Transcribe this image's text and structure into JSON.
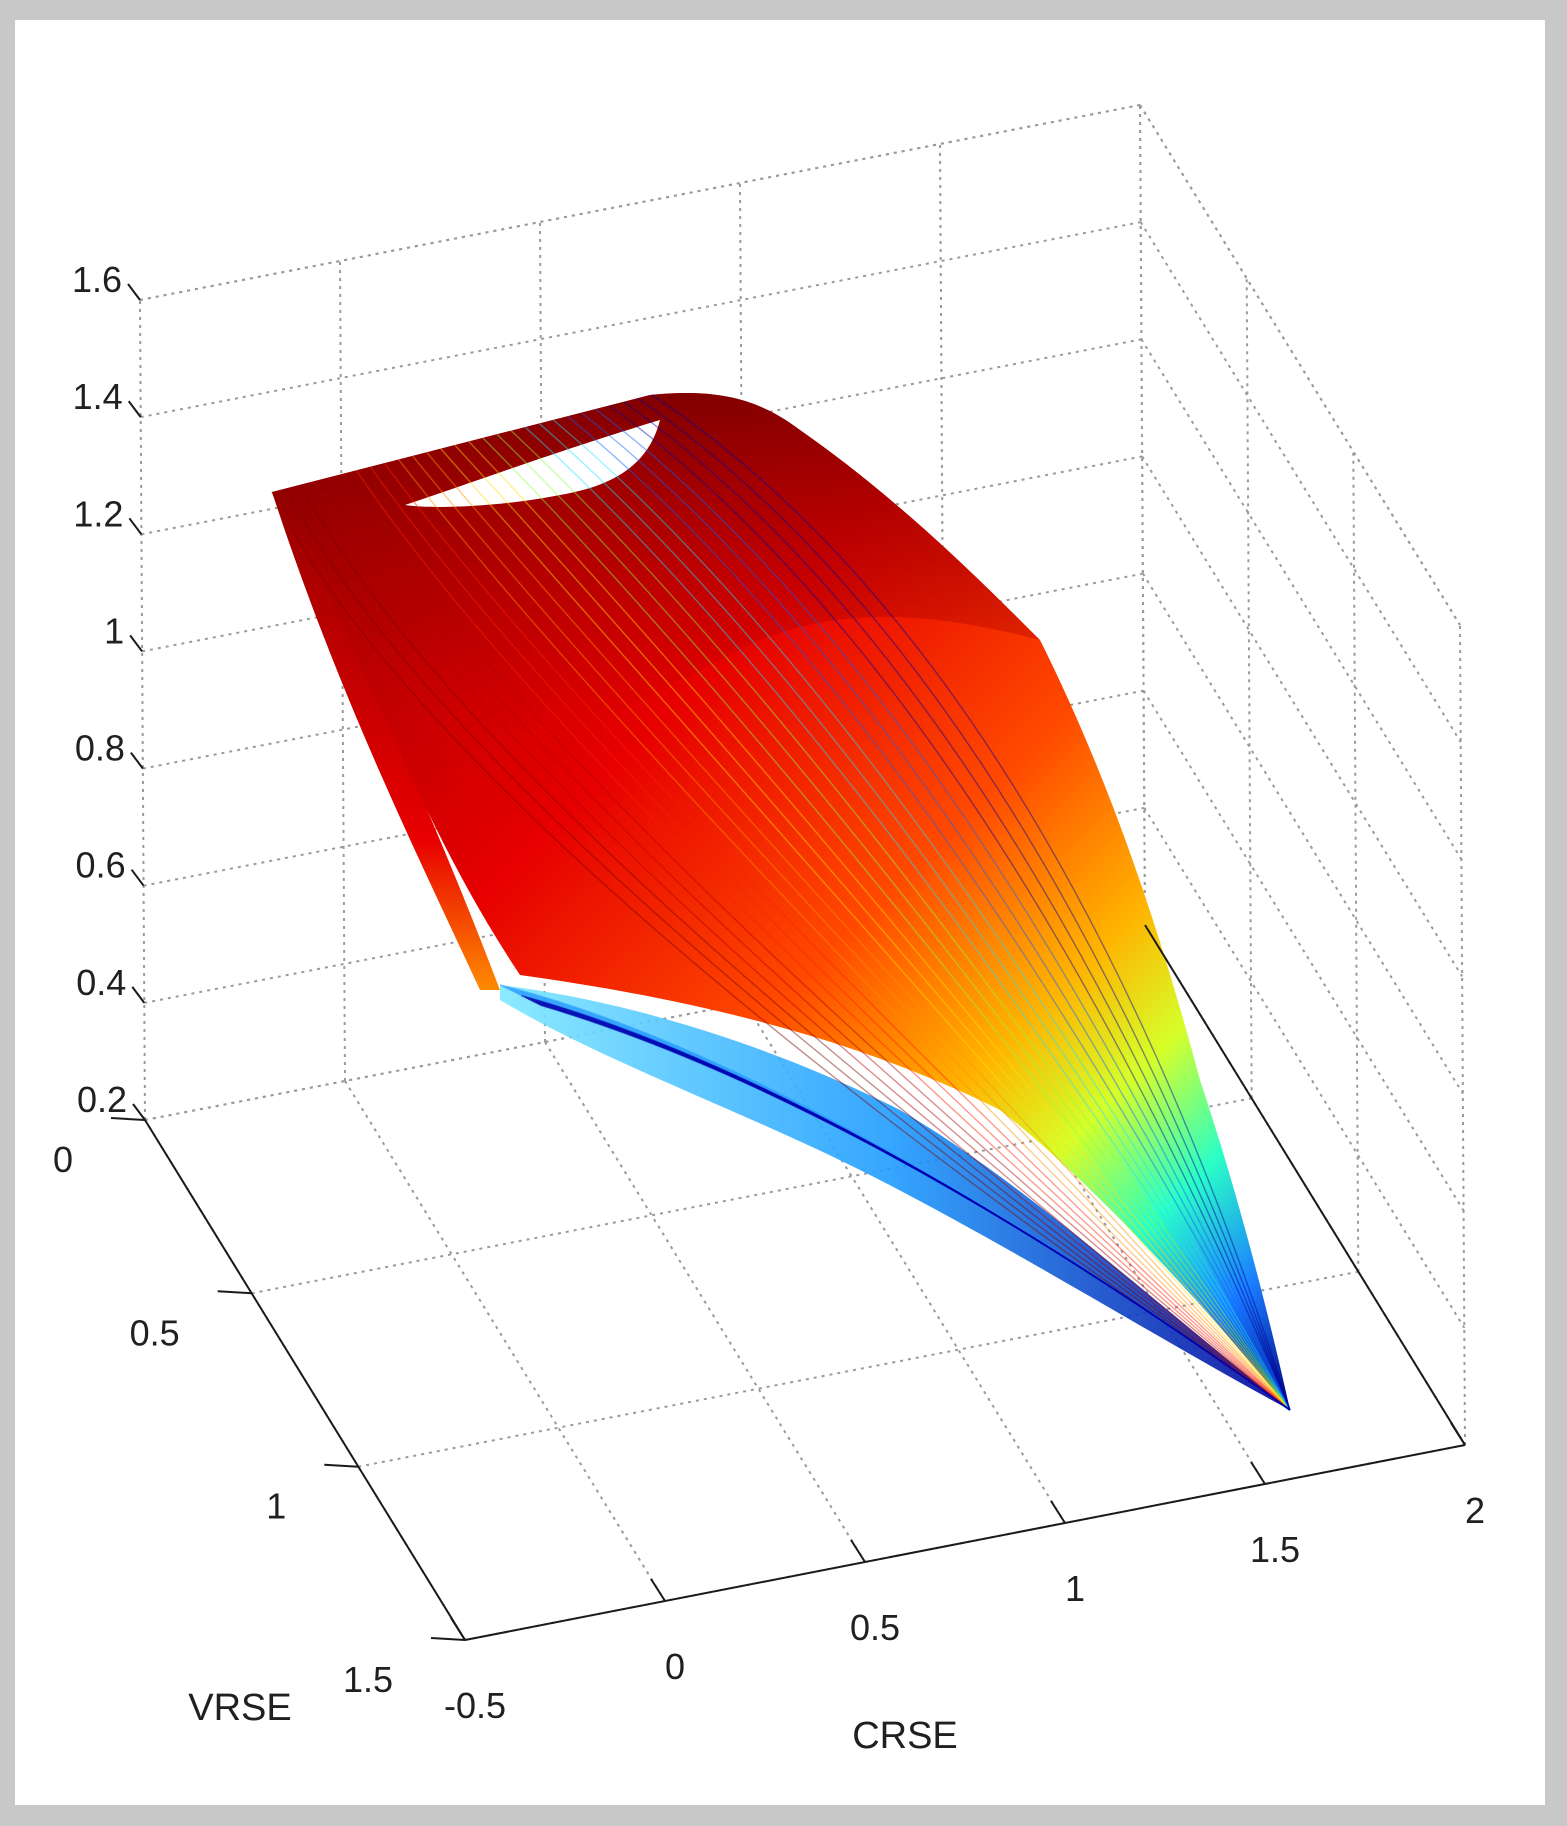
{
  "chart_data": {
    "type": "scatter",
    "title": "",
    "xlabel": "CRSE",
    "ylabel": "VRSE",
    "zlabel": "",
    "x_ticks": [
      "-0.5",
      "0",
      "0.5",
      "1",
      "1.5",
      "2"
    ],
    "y_ticks": [
      "0",
      "0.5",
      "1",
      "1.5"
    ],
    "z_ticks": [
      "0.2",
      "0.4",
      "0.6",
      "0.8",
      "1",
      "1.2",
      "1.4",
      "1.6"
    ],
    "xlim": [
      -0.5,
      2
    ],
    "ylim": [
      0,
      1.5
    ],
    "zlim": [
      0.2,
      1.6
    ],
    "grid": true,
    "colormap": [
      "#00008f",
      "#0000ff",
      "#00ffff",
      "#ffff00",
      "#ff8000",
      "#ff0000",
      "#800000"
    ],
    "background_color": "#c8c8c8",
    "plot_background": "#ffffff",
    "surface_outline": [
      {
        "x": 0.05,
        "y": 0.0,
        "z": 1.2
      },
      {
        "x": 0.9,
        "y": 0.0,
        "z": 1.35
      },
      {
        "x": 1.3,
        "y": 0.0,
        "z": 1.05
      },
      {
        "x": 1.75,
        "y": 0.0,
        "z": 0.35
      },
      {
        "x": 1.6,
        "y": 0.8,
        "z": 0.32
      },
      {
        "x": 0.5,
        "y": 0.55,
        "z": 0.6
      },
      {
        "x": 0.0,
        "y": 0.0,
        "z": 0.65
      }
    ]
  }
}
